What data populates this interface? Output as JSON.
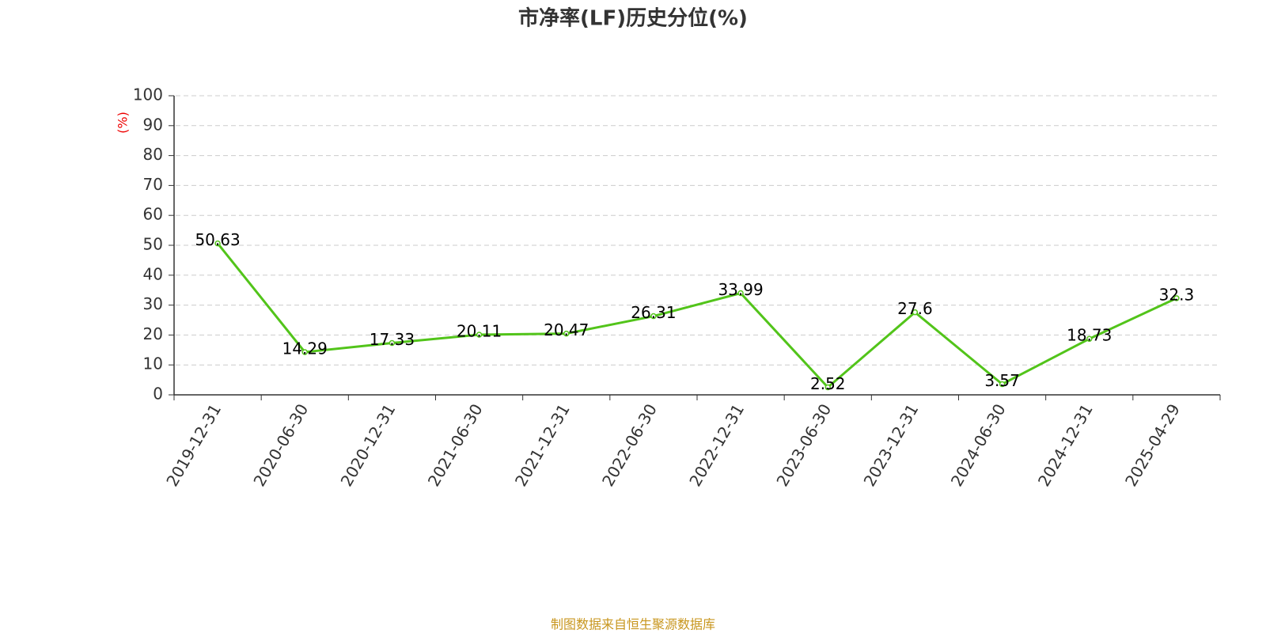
{
  "chart_data": {
    "type": "line",
    "title": "市净率(LF)历史分位(%)",
    "y_label": "(%)",
    "source": "制图数据来自恒生聚源数据库",
    "categories": [
      "2019-12-31",
      "2020-06-30",
      "2020-12-31",
      "2021-06-30",
      "2021-12-31",
      "2022-06-30",
      "2022-12-31",
      "2023-06-30",
      "2023-12-31",
      "2024-06-30",
      "2024-12-31",
      "2025-04-29"
    ],
    "series": [
      {
        "color": "#52c41a",
        "values": [
          50.63,
          14.29,
          17.33,
          20.11,
          20.47,
          26.31,
          33.99,
          2.52,
          27.6,
          3.57,
          18.73,
          32.3
        ]
      }
    ],
    "ylim": [
      0,
      100
    ],
    "yticks": [
      0,
      10,
      20,
      30,
      40,
      50,
      60,
      70,
      80,
      90,
      100
    ],
    "grid": true
  }
}
